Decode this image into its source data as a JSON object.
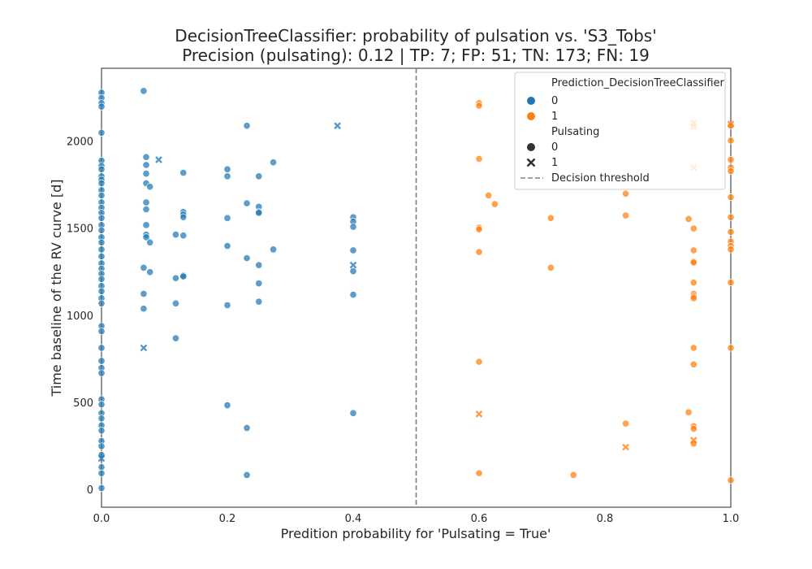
{
  "chart_data": {
    "type": "scatter",
    "title": "DecisionTreeClassifier: probability of pulsation vs. 'S3_Tobs'",
    "subtitle": "Precision (pulsating): 0.12 | TP: 7; FP: 51; TN: 173; FN: 19",
    "xlabel": "Predition probability for 'Pulsating = True'",
    "ylabel": "Time baseline of the RV curve [d]",
    "xlim": [
      0.0,
      1.0
    ],
    "ylim": [
      -100,
      2420
    ],
    "x_ticks": [
      0.0,
      0.2,
      0.4,
      0.6,
      0.8,
      1.0
    ],
    "x_tick_labels": [
      "0.0",
      "0.2",
      "0.4",
      "0.6",
      "0.8",
      "1.0"
    ],
    "y_ticks": [
      0,
      500,
      1000,
      1500,
      2000
    ],
    "y_tick_labels": [
      "0",
      "500",
      "1000",
      "1500",
      "2000"
    ],
    "grid": false,
    "decision_threshold": 0.5,
    "colors": {
      "prediction_0": "#1f77b4",
      "prediction_1": "#ff7f0e",
      "threshold": "#808080"
    },
    "legend": {
      "placement": "top-right",
      "hue_title": "Prediction_DecisionTreeClassifier",
      "hue_entries": [
        "0",
        "1"
      ],
      "style_title": "Pulsating",
      "style_entries": [
        "0",
        "1"
      ],
      "threshold_label": "Decision threshold"
    },
    "series": [
      {
        "prediction": 0,
        "pulsating": 0,
        "marker": "circle",
        "points": [
          [
            0.0,
            2280
          ],
          [
            0.0,
            2250
          ],
          [
            0.0,
            2220
          ],
          [
            0.0,
            2200
          ],
          [
            0.0,
            2050
          ],
          [
            0.0,
            1890
          ],
          [
            0.0,
            1860
          ],
          [
            0.0,
            1840
          ],
          [
            0.0,
            1800
          ],
          [
            0.0,
            1780
          ],
          [
            0.0,
            1760
          ],
          [
            0.0,
            1720
          ],
          [
            0.0,
            1690
          ],
          [
            0.0,
            1650
          ],
          [
            0.0,
            1620
          ],
          [
            0.0,
            1590
          ],
          [
            0.0,
            1560
          ],
          [
            0.0,
            1520
          ],
          [
            0.0,
            1490
          ],
          [
            0.0,
            1450
          ],
          [
            0.0,
            1420
          ],
          [
            0.0,
            1380
          ],
          [
            0.0,
            1340
          ],
          [
            0.0,
            1300
          ],
          [
            0.0,
            1270
          ],
          [
            0.0,
            1240
          ],
          [
            0.0,
            1210
          ],
          [
            0.0,
            1170
          ],
          [
            0.0,
            1140
          ],
          [
            0.0,
            1100
          ],
          [
            0.0,
            1070
          ],
          [
            0.0,
            940
          ],
          [
            0.0,
            910
          ],
          [
            0.0,
            815
          ],
          [
            0.0,
            740
          ],
          [
            0.0,
            700
          ],
          [
            0.0,
            670
          ],
          [
            0.0,
            520
          ],
          [
            0.0,
            490
          ],
          [
            0.0,
            440
          ],
          [
            0.0,
            410
          ],
          [
            0.0,
            370
          ],
          [
            0.0,
            340
          ],
          [
            0.0,
            280
          ],
          [
            0.0,
            250
          ],
          [
            0.0,
            200
          ],
          [
            0.0,
            130
          ],
          [
            0.0,
            95
          ],
          [
            0.0,
            10
          ],
          [
            0.067,
            2290
          ],
          [
            0.067,
            1275
          ],
          [
            0.067,
            1125
          ],
          [
            0.067,
            1040
          ],
          [
            0.071,
            1910
          ],
          [
            0.071,
            1865
          ],
          [
            0.071,
            1815
          ],
          [
            0.071,
            1760
          ],
          [
            0.071,
            1650
          ],
          [
            0.071,
            1610
          ],
          [
            0.071,
            1520
          ],
          [
            0.071,
            1465
          ],
          [
            0.071,
            1450
          ],
          [
            0.077,
            1740
          ],
          [
            0.077,
            1420
          ],
          [
            0.077,
            1250
          ],
          [
            0.118,
            1465
          ],
          [
            0.118,
            1215
          ],
          [
            0.118,
            1070
          ],
          [
            0.118,
            870
          ],
          [
            0.13,
            1820
          ],
          [
            0.13,
            1595
          ],
          [
            0.13,
            1580
          ],
          [
            0.13,
            1565
          ],
          [
            0.13,
            1460
          ],
          [
            0.13,
            1230
          ],
          [
            0.13,
            1225
          ],
          [
            0.2,
            1840
          ],
          [
            0.2,
            1800
          ],
          [
            0.2,
            1560
          ],
          [
            0.2,
            1400
          ],
          [
            0.2,
            1060
          ],
          [
            0.2,
            485
          ],
          [
            0.231,
            2090
          ],
          [
            0.231,
            1645
          ],
          [
            0.231,
            1330
          ],
          [
            0.231,
            355
          ],
          [
            0.231,
            85
          ],
          [
            0.25,
            1800
          ],
          [
            0.25,
            1625
          ],
          [
            0.25,
            1595
          ],
          [
            0.25,
            1590
          ],
          [
            0.25,
            1290
          ],
          [
            0.25,
            1185
          ],
          [
            0.25,
            1080
          ],
          [
            0.273,
            1880
          ],
          [
            0.273,
            1380
          ],
          [
            0.4,
            1565
          ],
          [
            0.4,
            1540
          ],
          [
            0.4,
            1510
          ],
          [
            0.4,
            1375
          ],
          [
            0.4,
            1255
          ],
          [
            0.4,
            1120
          ],
          [
            0.4,
            440
          ]
        ]
      },
      {
        "prediction": 0,
        "pulsating": 1,
        "marker": "x",
        "points": [
          [
            0.0,
            180
          ],
          [
            0.067,
            815
          ],
          [
            0.091,
            1895
          ],
          [
            0.375,
            2090
          ],
          [
            0.4,
            1290
          ]
        ]
      },
      {
        "prediction": 1,
        "pulsating": 0,
        "marker": "circle",
        "points": [
          [
            0.6,
            2220
          ],
          [
            0.6,
            2205
          ],
          [
            0.6,
            1900
          ],
          [
            0.6,
            1505
          ],
          [
            0.6,
            1495
          ],
          [
            0.6,
            1365
          ],
          [
            0.6,
            735
          ],
          [
            0.6,
            95
          ],
          [
            0.615,
            1690
          ],
          [
            0.625,
            1640
          ],
          [
            0.714,
            1560
          ],
          [
            0.714,
            1275
          ],
          [
            0.75,
            85
          ],
          [
            0.833,
            1700
          ],
          [
            0.833,
            1575
          ],
          [
            0.833,
            380
          ],
          [
            0.933,
            1555
          ],
          [
            0.933,
            445
          ],
          [
            0.941,
            1500
          ],
          [
            0.941,
            1375
          ],
          [
            0.941,
            1310
          ],
          [
            0.941,
            1305
          ],
          [
            0.941,
            1190
          ],
          [
            0.941,
            1125
          ],
          [
            0.941,
            1110
          ],
          [
            0.941,
            1100
          ],
          [
            0.941,
            815
          ],
          [
            0.941,
            720
          ],
          [
            0.941,
            365
          ],
          [
            0.941,
            350
          ],
          [
            0.941,
            265
          ],
          [
            1.0,
            2090
          ],
          [
            1.0,
            2005
          ],
          [
            1.0,
            1895
          ],
          [
            1.0,
            1850
          ],
          [
            1.0,
            1830
          ],
          [
            1.0,
            1680
          ],
          [
            1.0,
            1565
          ],
          [
            1.0,
            1480
          ],
          [
            1.0,
            1425
          ],
          [
            1.0,
            1400
          ],
          [
            1.0,
            1380
          ],
          [
            1.0,
            1190
          ],
          [
            1.0,
            815
          ],
          [
            1.0,
            55
          ]
        ]
      },
      {
        "prediction": 1,
        "pulsating": 1,
        "marker": "x",
        "points": [
          [
            0.6,
            435
          ],
          [
            0.833,
            245
          ],
          [
            0.941,
            2105
          ],
          [
            0.941,
            2085
          ],
          [
            0.941,
            1850
          ],
          [
            0.941,
            285
          ],
          [
            1.0,
            2100
          ]
        ]
      }
    ]
  }
}
